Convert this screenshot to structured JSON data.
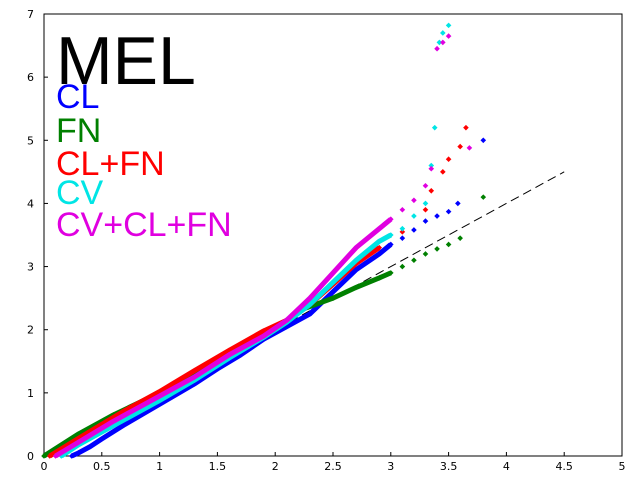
{
  "chart_data": {
    "type": "scatter",
    "title": "MEL",
    "xlabel": "",
    "ylabel": "",
    "xlim": [
      0,
      5
    ],
    "ylim": [
      0,
      7
    ],
    "xticks": [
      "0",
      "0.5",
      "1",
      "1.5",
      "2",
      "2.5",
      "3",
      "3.5",
      "4",
      "4.5",
      "5"
    ],
    "yticks": [
      "0",
      "1",
      "2",
      "3",
      "4",
      "5",
      "6",
      "7"
    ],
    "grid": false,
    "legend_position": "top-left",
    "reference_line": {
      "x": [
        0,
        4.5
      ],
      "y": [
        0,
        4.5
      ],
      "style": "dashed",
      "color": "#000000"
    },
    "series": [
      {
        "name": "CL",
        "color": "#0000ff",
        "points": [
          [
            0.24,
            0
          ],
          [
            0.3,
            0.05
          ],
          [
            0.4,
            0.15
          ],
          [
            0.5,
            0.27
          ],
          [
            0.7,
            0.5
          ],
          [
            1.0,
            0.82
          ],
          [
            1.3,
            1.14
          ],
          [
            1.5,
            1.38
          ],
          [
            1.7,
            1.6
          ],
          [
            1.9,
            1.85
          ],
          [
            2.1,
            2.05
          ],
          [
            2.3,
            2.25
          ],
          [
            2.5,
            2.6
          ],
          [
            2.7,
            2.95
          ],
          [
            2.9,
            3.2
          ],
          [
            3.0,
            3.35
          ],
          [
            3.1,
            3.45
          ],
          [
            3.2,
            3.58
          ],
          [
            3.3,
            3.72
          ],
          [
            3.4,
            3.8
          ],
          [
            3.5,
            3.87
          ],
          [
            3.58,
            4.0
          ],
          [
            3.8,
            5.0
          ]
        ]
      },
      {
        "name": "FN",
        "color": "#008000",
        "points": [
          [
            0,
            0
          ],
          [
            0.3,
            0.35
          ],
          [
            0.6,
            0.65
          ],
          [
            1.0,
            1.0
          ],
          [
            1.3,
            1.3
          ],
          [
            1.6,
            1.6
          ],
          [
            1.9,
            1.88
          ],
          [
            2.1,
            2.12
          ],
          [
            2.2,
            2.3
          ],
          [
            2.35,
            2.4
          ],
          [
            2.5,
            2.5
          ],
          [
            2.7,
            2.67
          ],
          [
            2.9,
            2.82
          ],
          [
            3.0,
            2.9
          ],
          [
            3.1,
            3.0
          ],
          [
            3.2,
            3.1
          ],
          [
            3.3,
            3.2
          ],
          [
            3.4,
            3.28
          ],
          [
            3.5,
            3.35
          ],
          [
            3.6,
            3.45
          ],
          [
            3.8,
            4.1
          ]
        ]
      },
      {
        "name": "CL+FN",
        "color": "#ff0000",
        "points": [
          [
            0.05,
            0
          ],
          [
            0.3,
            0.28
          ],
          [
            0.7,
            0.72
          ],
          [
            1.0,
            1.02
          ],
          [
            1.3,
            1.35
          ],
          [
            1.6,
            1.67
          ],
          [
            1.9,
            1.98
          ],
          [
            2.1,
            2.15
          ],
          [
            2.3,
            2.4
          ],
          [
            2.5,
            2.72
          ],
          [
            2.7,
            3.05
          ],
          [
            2.9,
            3.3
          ],
          [
            3.1,
            3.55
          ],
          [
            3.3,
            3.9
          ],
          [
            3.35,
            4.2
          ],
          [
            3.45,
            4.5
          ],
          [
            3.5,
            4.7
          ],
          [
            3.6,
            4.9
          ],
          [
            3.65,
            5.2
          ]
        ]
      },
      {
        "name": "CV",
        "color": "#00e5e5",
        "points": [
          [
            0.15,
            0
          ],
          [
            0.3,
            0.18
          ],
          [
            0.6,
            0.48
          ],
          [
            1.0,
            0.88
          ],
          [
            1.3,
            1.2
          ],
          [
            1.6,
            1.55
          ],
          [
            1.9,
            1.88
          ],
          [
            2.1,
            2.12
          ],
          [
            2.3,
            2.4
          ],
          [
            2.5,
            2.75
          ],
          [
            2.7,
            3.1
          ],
          [
            2.9,
            3.4
          ],
          [
            3.0,
            3.5
          ],
          [
            3.1,
            3.6
          ],
          [
            3.2,
            3.8
          ],
          [
            3.3,
            4.0
          ],
          [
            3.35,
            4.6
          ],
          [
            3.38,
            5.2
          ],
          [
            3.42,
            6.55
          ],
          [
            3.45,
            6.7
          ],
          [
            3.5,
            6.82
          ]
        ]
      },
      {
        "name": "CV+CL+FN",
        "color": "#e000e0",
        "points": [
          [
            0.1,
            0
          ],
          [
            0.3,
            0.22
          ],
          [
            0.6,
            0.55
          ],
          [
            1.0,
            0.95
          ],
          [
            1.3,
            1.25
          ],
          [
            1.6,
            1.6
          ],
          [
            1.9,
            1.9
          ],
          [
            2.1,
            2.15
          ],
          [
            2.3,
            2.5
          ],
          [
            2.5,
            2.9
          ],
          [
            2.7,
            3.3
          ],
          [
            2.9,
            3.6
          ],
          [
            3.0,
            3.75
          ],
          [
            3.1,
            3.9
          ],
          [
            3.2,
            4.05
          ],
          [
            3.3,
            4.28
          ],
          [
            3.35,
            4.55
          ],
          [
            3.4,
            6.45
          ],
          [
            3.45,
            6.55
          ],
          [
            3.5,
            6.65
          ],
          [
            3.68,
            4.88
          ]
        ]
      }
    ]
  }
}
